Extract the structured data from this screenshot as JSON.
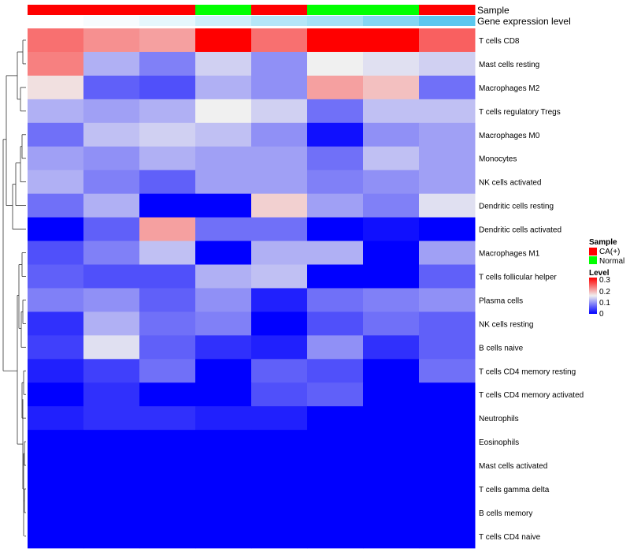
{
  "chart_data": {
    "type": "heatmap",
    "annotation_labels": {
      "sample": "Sample",
      "expression": "Gene expression level"
    },
    "sample_groups": [
      "CA(+)",
      "CA(+)",
      "CA(+)",
      "Normal",
      "CA(+)",
      "Normal",
      "Normal",
      "CA(+)"
    ],
    "expression_levels": [
      0.0,
      0.05,
      0.15,
      0.3,
      0.45,
      0.55,
      0.75,
      1.0
    ],
    "rows": [
      "T cells CD8",
      "Mast cells resting",
      "Macrophages M2",
      "T cells regulatory  Tregs",
      "Macrophages M0",
      "Monocytes",
      "NK cells activated",
      "Dendritic cells resting",
      "Dendritic cells activated",
      "Macrophages M1",
      "T cells follicular helper",
      "Plasma cells",
      "NK cells resting",
      "B cells naive",
      "T cells CD4 memory resting",
      "T cells CD4 memory activated",
      "Neutrophils",
      "Eosinophils",
      "Mast cells activated",
      "T cells gamma delta",
      "B cells memory",
      "T cells CD4 naive"
    ],
    "values": [
      [
        0.23,
        0.21,
        0.2,
        0.3,
        0.23,
        0.3,
        0.3,
        0.24
      ],
      [
        0.22,
        0.11,
        0.08,
        0.13,
        0.09,
        0.15,
        0.14,
        0.13
      ],
      [
        0.16,
        0.06,
        0.05,
        0.11,
        0.09,
        0.2,
        0.18,
        0.07
      ],
      [
        0.11,
        0.1,
        0.11,
        0.15,
        0.13,
        0.07,
        0.12,
        0.12
      ],
      [
        0.07,
        0.12,
        0.13,
        0.12,
        0.09,
        0.01,
        0.09,
        0.1
      ],
      [
        0.1,
        0.09,
        0.11,
        0.1,
        0.1,
        0.07,
        0.12,
        0.1
      ],
      [
        0.11,
        0.08,
        0.06,
        0.1,
        0.1,
        0.08,
        0.09,
        0.1
      ],
      [
        0.07,
        0.11,
        0.0,
        0.0,
        0.17,
        0.1,
        0.08,
        0.14
      ],
      [
        0.0,
        0.06,
        0.2,
        0.07,
        0.07,
        0.0,
        0.01,
        0.0
      ],
      [
        0.05,
        0.08,
        0.12,
        0.0,
        0.11,
        0.11,
        0.0,
        0.1
      ],
      [
        0.06,
        0.05,
        0.05,
        0.11,
        0.12,
        0.0,
        0.0,
        0.06
      ],
      [
        0.08,
        0.09,
        0.06,
        0.09,
        0.02,
        0.07,
        0.08,
        0.09
      ],
      [
        0.03,
        0.11,
        0.07,
        0.08,
        0.0,
        0.05,
        0.07,
        0.06
      ],
      [
        0.04,
        0.14,
        0.06,
        0.03,
        0.02,
        0.09,
        0.03,
        0.06
      ],
      [
        0.02,
        0.04,
        0.07,
        0.0,
        0.06,
        0.05,
        0.0,
        0.07
      ],
      [
        0.0,
        0.03,
        0.0,
        0.0,
        0.05,
        0.06,
        0.0,
        0.0
      ],
      [
        0.02,
        0.03,
        0.03,
        0.02,
        0.02,
        0.0,
        0.0,
        0.0
      ],
      [
        0.0,
        0.0,
        0.0,
        0.0,
        0.0,
        0.0,
        0.0,
        0.0
      ],
      [
        0.0,
        0.0,
        0.0,
        0.0,
        0.0,
        0.0,
        0.0,
        0.0
      ],
      [
        0.0,
        0.0,
        0.0,
        0.0,
        0.0,
        0.0,
        0.0,
        0.0
      ],
      [
        0.0,
        0.0,
        0.0,
        0.0,
        0.0,
        0.0,
        0.0,
        0.0
      ],
      [
        0.0,
        0.0,
        0.0,
        0.0,
        0.0,
        0.0,
        0.0,
        0.0
      ]
    ],
    "color_scale": {
      "min": 0,
      "mid": 0.15,
      "max": 0.3,
      "low": "#0000ff",
      "mid_color": "#f0f0f0",
      "high": "#ff0000"
    },
    "expression_scale": {
      "low": "#ffffff",
      "high": "#5bc8ef"
    },
    "legend": {
      "position": "right",
      "sample_title": "Sample",
      "sample_entries": [
        {
          "label": "CA(+)",
          "color": "#ff0000"
        },
        {
          "label": "Normal",
          "color": "#00ff00"
        }
      ],
      "level_title": "Level",
      "level_ticks": [
        "0.3",
        "0.2",
        "0.1",
        "0"
      ],
      "level_tick_values": [
        0.3,
        0.2,
        0.1,
        0
      ]
    }
  }
}
